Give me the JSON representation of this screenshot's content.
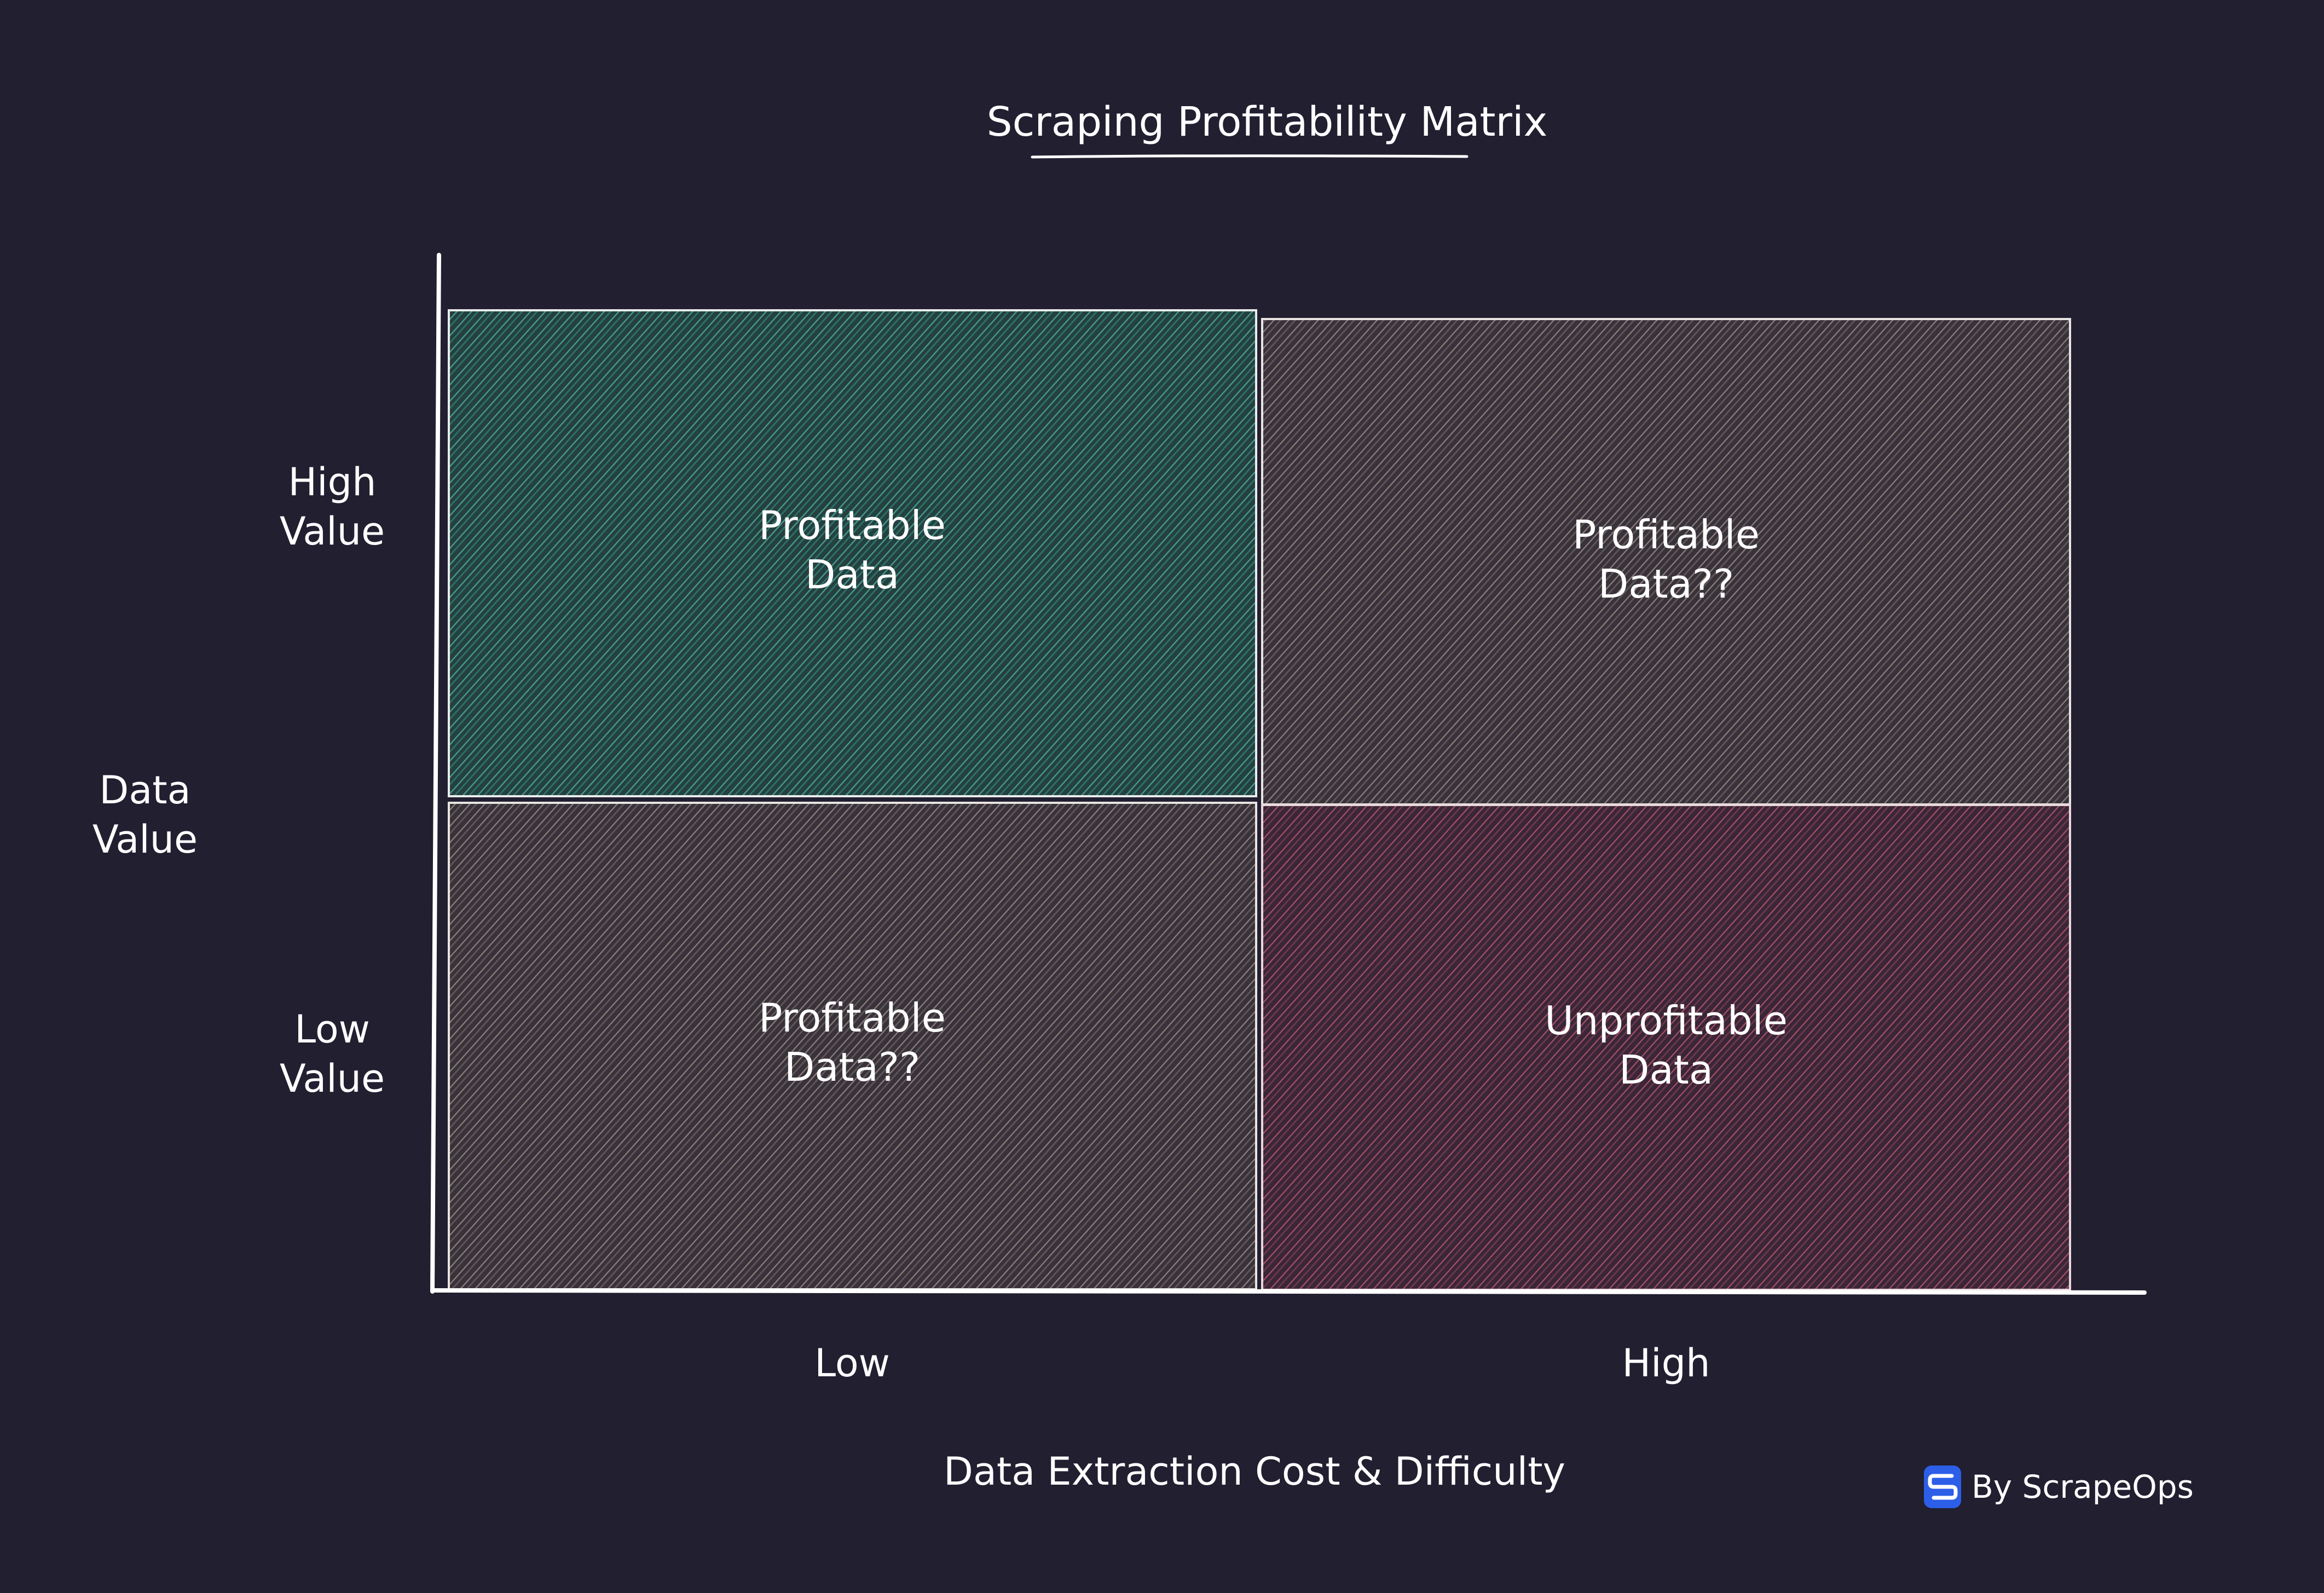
{
  "diagram": {
    "title": "Scraping Profitability Matrix",
    "y_axis": {
      "label_lines": [
        "Data",
        "Value"
      ],
      "high_label_lines": [
        "High",
        "Value"
      ],
      "low_label_lines": [
        "Low",
        "Value"
      ]
    },
    "x_axis": {
      "label": "Data Extraction Cost & Difficulty",
      "low_label": "Low",
      "high_label": "High"
    },
    "quadrants": [
      {
        "id": "top-left",
        "lines": [
          "Profitable",
          "Data"
        ],
        "color": "#3f8f86"
      },
      {
        "id": "top-right",
        "lines": [
          "Profitable",
          "Data??"
        ],
        "color": "#a89690"
      },
      {
        "id": "bottom-left",
        "lines": [
          "Profitable",
          "Data??"
        ],
        "color": "#a89690"
      },
      {
        "id": "bottom-right",
        "lines": [
          "Unprofitable",
          "Data"
        ],
        "color": "#c0607a"
      }
    ],
    "credit": {
      "text": "By ScrapeOps",
      "icon": "scrapeops-logo-icon",
      "icon_color": "#2c5ee8"
    },
    "colors": {
      "background": "#211f30",
      "lines": "#ffffff"
    }
  }
}
